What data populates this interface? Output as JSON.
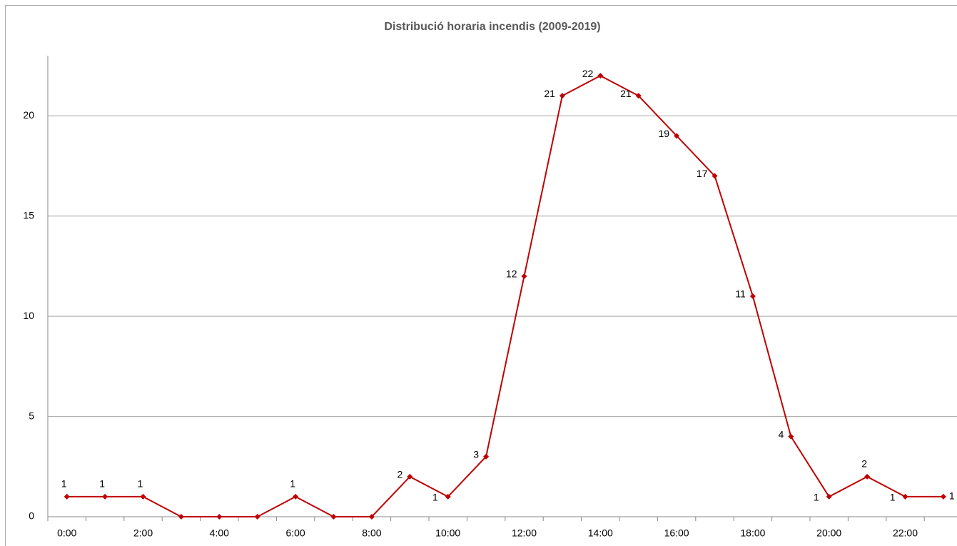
{
  "chart_data": {
    "type": "line",
    "title": "Distribució horaria incendis (2009-2019)",
    "categories": [
      "0:00",
      null,
      "2:00",
      null,
      "4:00",
      null,
      "6:00",
      null,
      "8:00",
      null,
      "10:00",
      null,
      "12:00",
      null,
      "14:00",
      null,
      "16:00",
      null,
      "18:00",
      null,
      "20:00",
      null,
      "22:00",
      null
    ],
    "series": [
      {
        "name": "Incendis",
        "color": "#c00000",
        "values": [
          1,
          1,
          1,
          0,
          0,
          0,
          1,
          0,
          0,
          2,
          1,
          3,
          12,
          21,
          22,
          21,
          19,
          17,
          11,
          4,
          1,
          2,
          1,
          1
        ]
      }
    ],
    "ylim": [
      0,
      23
    ],
    "yticks": [
      0,
      5,
      10,
      15,
      20
    ],
    "grid": true
  }
}
